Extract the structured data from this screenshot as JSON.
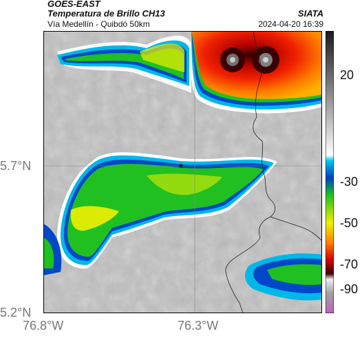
{
  "header": {
    "satellite": "GOES-EAST",
    "product": "Temperatura de Brillo CH13",
    "route": "Vía Medellín - Quibdó 50km",
    "agency": "SIATA",
    "datetime": "2024-04-20 16:39"
  },
  "axes": {
    "lat_labels": [
      "5.7°N",
      "5.2°N"
    ],
    "lon_labels": [
      "76.8°W",
      "76.3°W"
    ]
  },
  "colorbar": {
    "ticks": [
      "20",
      "-30",
      "-50",
      "-70",
      "-90"
    ],
    "stops": [
      "#1a1a1a",
      "#9a9a9a",
      "#ffffff",
      "#00c8f0",
      "#0040c0",
      "#20c020",
      "#f0f000",
      "#ff8000",
      "#d80000",
      "#400000",
      "#f0f0f0",
      "#a0a0a0",
      "#c060c0"
    ]
  },
  "marker": {
    "symbol": "★"
  }
}
